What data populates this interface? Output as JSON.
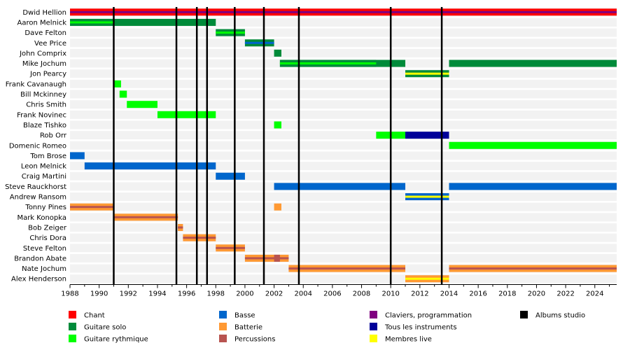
{
  "chart_data": {
    "type": "timeline",
    "x_range": [
      1988,
      2025.5
    ],
    "x_ticks": [
      1988,
      1990,
      1992,
      1994,
      1996,
      1998,
      2000,
      2002,
      2004,
      2006,
      2008,
      2010,
      2012,
      2014,
      2016,
      2018,
      2020,
      2022,
      2024
    ],
    "grid": true,
    "legend_position": "bottom",
    "roles": {
      "chant": {
        "label": "Chant",
        "color": "#ff0000"
      },
      "guitare_solo": {
        "label": "Guitare solo",
        "color": "#008b3a"
      },
      "guitare_rythmique": {
        "label": "Guitare rythmique",
        "color": "#00ff00"
      },
      "basse": {
        "label": "Basse",
        "color": "#0066cc"
      },
      "batterie": {
        "label": "Batterie",
        "color": "#ff9933"
      },
      "percussions": {
        "label": "Percussions",
        "color": "#b85450"
      },
      "claviers": {
        "label": "Claviers, programmation",
        "color": "#800080"
      },
      "tous": {
        "label": "Tous les instruments",
        "color": "#000099"
      },
      "live": {
        "label": "Membres live",
        "color": "#ffff00"
      },
      "albums": {
        "label": "Albums studio",
        "color": "#000000"
      }
    },
    "legend_order": [
      [
        "chant",
        "guitare_solo",
        "guitare_rythmique"
      ],
      [
        "basse",
        "batterie",
        "percussions"
      ],
      [
        "claviers",
        "tous",
        "live"
      ],
      [
        "albums"
      ]
    ],
    "members": [
      {
        "name": "Dwid Hellion",
        "bars": [
          {
            "from": 1988,
            "to": 2025.5,
            "color": "chant",
            "inner": "claviers"
          }
        ]
      },
      {
        "name": "Aaron Melnick",
        "bars": [
          {
            "from": 1988,
            "to": 1998,
            "color": "guitare_solo"
          },
          {
            "from": 1988,
            "to": 1991,
            "color": "guitare_solo",
            "inner": "guitare_rythmique"
          }
        ]
      },
      {
        "name": "Dave Felton",
        "bars": [
          {
            "from": 1998,
            "to": 2000,
            "color": "guitare_solo",
            "inner": "guitare_rythmique"
          }
        ]
      },
      {
        "name": "Vee Price",
        "bars": [
          {
            "from": 2000,
            "to": 2002,
            "color": "guitare_solo",
            "inner": "basse"
          }
        ]
      },
      {
        "name": "John Comprix",
        "bars": [
          {
            "from": 2002,
            "to": 2002.5,
            "color": "guitare_solo"
          }
        ]
      },
      {
        "name": "Mike Jochum",
        "bars": [
          {
            "from": 2002.4,
            "to": 2011,
            "color": "guitare_solo"
          },
          {
            "from": 2002.4,
            "to": 2009,
            "color": "guitare_solo",
            "inner": "guitare_rythmique"
          },
          {
            "from": 2014,
            "to": 2025.5,
            "color": "guitare_solo"
          }
        ]
      },
      {
        "name": "Jon Pearcy",
        "bars": [
          {
            "from": 2011,
            "to": 2014,
            "color": "guitare_solo",
            "inner": "live"
          }
        ]
      },
      {
        "name": "Frank Cavanaugh",
        "bars": [
          {
            "from": 1991,
            "to": 1991.5,
            "color": "guitare_rythmique"
          }
        ]
      },
      {
        "name": "Bill Mckinney",
        "bars": [
          {
            "from": 1991.4,
            "to": 1991.9,
            "color": "guitare_rythmique"
          }
        ]
      },
      {
        "name": "Chris Smith",
        "bars": [
          {
            "from": 1991.9,
            "to": 1994,
            "color": "guitare_rythmique"
          }
        ]
      },
      {
        "name": "Frank Novinec",
        "bars": [
          {
            "from": 1994,
            "to": 1998,
            "color": "guitare_rythmique"
          }
        ]
      },
      {
        "name": "Blaze Tishko",
        "bars": [
          {
            "from": 2002,
            "to": 2002.5,
            "color": "guitare_rythmique"
          }
        ]
      },
      {
        "name": "Rob Orr",
        "bars": [
          {
            "from": 2009,
            "to": 2011,
            "color": "guitare_rythmique"
          },
          {
            "from": 2011,
            "to": 2014,
            "color": "tous"
          }
        ]
      },
      {
        "name": "Domenic Romeo",
        "bars": [
          {
            "from": 2014,
            "to": 2025.5,
            "color": "guitare_rythmique"
          }
        ]
      },
      {
        "name": "Tom Brose",
        "bars": [
          {
            "from": 1988,
            "to": 1989,
            "color": "basse"
          }
        ]
      },
      {
        "name": "Leon Melnick",
        "bars": [
          {
            "from": 1989,
            "to": 1998,
            "color": "basse"
          }
        ]
      },
      {
        "name": "Craig Martini",
        "bars": [
          {
            "from": 1998,
            "to": 2000,
            "color": "basse"
          }
        ]
      },
      {
        "name": "Steve Rauckhorst",
        "bars": [
          {
            "from": 2002,
            "to": 2011,
            "color": "basse"
          },
          {
            "from": 2014,
            "to": 2025.5,
            "color": "basse"
          }
        ]
      },
      {
        "name": "Andrew Ransom",
        "bars": [
          {
            "from": 2011,
            "to": 2014,
            "color": "basse",
            "inner": "live"
          }
        ]
      },
      {
        "name": "Tonny Pines",
        "bars": [
          {
            "from": 1988,
            "to": 1991,
            "color": "batterie",
            "inner": "percussions"
          },
          {
            "from": 2002,
            "to": 2002.5,
            "color": "batterie"
          }
        ]
      },
      {
        "name": "Mark Konopka",
        "bars": [
          {
            "from": 1991,
            "to": 1995.4,
            "color": "batterie",
            "inner": "percussions"
          }
        ]
      },
      {
        "name": "Bob Zeiger",
        "bars": [
          {
            "from": 1995.4,
            "to": 1995.75,
            "color": "batterie",
            "inner": "percussions"
          }
        ]
      },
      {
        "name": "Chris Dora",
        "bars": [
          {
            "from": 1995.75,
            "to": 1998,
            "color": "batterie",
            "inner": "percussions"
          }
        ]
      },
      {
        "name": "Steve Felton",
        "bars": [
          {
            "from": 1998,
            "to": 2000,
            "color": "batterie",
            "inner": "percussions"
          }
        ]
      },
      {
        "name": "Brandon Abate",
        "bars": [
          {
            "from": 2000,
            "to": 2003,
            "color": "batterie",
            "inner": "percussions"
          },
          {
            "from": 2002,
            "to": 2002.4,
            "color": "percussions"
          }
        ]
      },
      {
        "name": "Nate Jochum",
        "bars": [
          {
            "from": 2003,
            "to": 2011,
            "color": "batterie",
            "inner": "percussions"
          },
          {
            "from": 2014,
            "to": 2025.5,
            "color": "batterie",
            "inner": "percussions"
          }
        ]
      },
      {
        "name": "Alex Henderson",
        "bars": [
          {
            "from": 2011,
            "to": 2014,
            "color": "batterie",
            "inner": "live"
          }
        ]
      }
    ],
    "album_years": [
      1991,
      1995.3,
      1996.7,
      1997.4,
      1999.3,
      2001.3,
      2003.7,
      2010,
      2013.5
    ]
  }
}
